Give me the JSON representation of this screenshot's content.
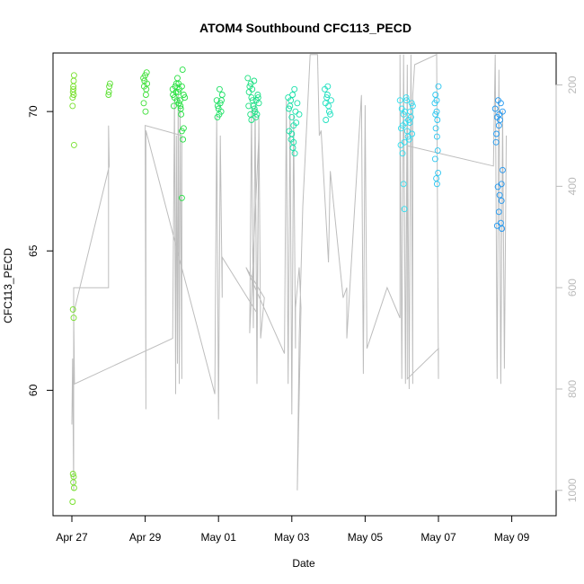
{
  "chart_data": {
    "type": "scatter",
    "title": "ATOM4 Southbound CFC113_PECD",
    "xlabel": "Date",
    "ylabel": "CFC113_PECD",
    "x_ticks": [
      "Apr 27",
      "Apr 29",
      "May 01",
      "May 03",
      "May 05",
      "May 07",
      "May 09"
    ],
    "x_tick_days": [
      0,
      2,
      4,
      6,
      8,
      10,
      12
    ],
    "y_ticks": [
      60,
      65,
      70
    ],
    "y2_ticks": [
      200,
      400,
      600,
      800,
      1000
    ],
    "xlim_days": [
      -0.5,
      13.0
    ],
    "ylim": [
      55.5,
      72.1
    ],
    "y2lim": [
      1050,
      137
    ],
    "grid": false,
    "legend": "none",
    "color_scale": [
      "#77e02a",
      "#22e040",
      "#16e0a8",
      "#30e0f0",
      "#1e8ef0"
    ],
    "series": [
      {
        "values": [
          [
            0.02,
            70.5
          ],
          [
            0.03,
            70.7
          ],
          [
            0.04,
            70.9
          ],
          [
            0.05,
            71.1
          ],
          [
            0.06,
            71.3
          ],
          [
            0.02,
            70.2
          ],
          [
            0.05,
            70.6
          ],
          [
            0.04,
            70.8
          ],
          [
            0.06,
            68.8
          ],
          [
            0.03,
            62.9
          ],
          [
            0.05,
            62.6
          ],
          [
            0.03,
            57.0
          ],
          [
            0.05,
            56.9
          ],
          [
            0.04,
            56.7
          ],
          [
            0.06,
            56.5
          ],
          [
            0.02,
            56.0
          ],
          [
            1.0,
            70.6
          ],
          [
            1.02,
            70.9
          ],
          [
            1.04,
            71.0
          ],
          [
            1.01,
            70.7
          ],
          [
            1.95,
            71.2
          ],
          [
            1.97,
            70.9
          ],
          [
            2.0,
            71.3
          ],
          [
            2.02,
            70.6
          ],
          [
            1.98,
            71.1
          ],
          [
            2.03,
            70.8
          ],
          [
            1.96,
            70.3
          ],
          [
            2.01,
            70.0
          ],
          [
            2.05,
            71.0
          ],
          [
            2.04,
            71.4
          ],
          [
            2.75,
            70.8
          ],
          [
            2.8,
            70.5
          ],
          [
            2.85,
            71.0
          ],
          [
            2.9,
            70.7
          ],
          [
            2.95,
            70.4
          ],
          [
            3.0,
            70.9
          ],
          [
            3.05,
            70.6
          ],
          [
            2.78,
            70.2
          ],
          [
            2.88,
            71.2
          ],
          [
            2.92,
            70.3
          ],
          [
            2.98,
            69.9
          ],
          [
            3.02,
            71.5
          ],
          [
            3.0,
            69.3
          ],
          [
            3.03,
            69.0
          ],
          [
            3.05,
            69.4
          ],
          [
            3.0,
            66.9
          ],
          [
            2.82,
            70.9
          ],
          [
            2.87,
            70.4
          ],
          [
            2.93,
            70.8
          ],
          [
            2.97,
            70.1
          ],
          [
            3.08,
            70.5
          ],
          [
            2.76,
            70.6
          ],
          [
            2.84,
            70.7
          ],
          [
            2.91,
            71.0
          ],
          [
            2.96,
            70.2
          ],
          [
            3.95,
            70.4
          ],
          [
            4.0,
            70.1
          ],
          [
            4.05,
            70.3
          ],
          [
            4.1,
            70.6
          ],
          [
            4.02,
            69.9
          ],
          [
            3.98,
            70.2
          ],
          [
            4.07,
            70.0
          ],
          [
            4.03,
            70.8
          ],
          [
            3.97,
            69.8
          ],
          [
            4.08,
            70.4
          ],
          [
            4.8,
            71.2
          ],
          [
            4.85,
            70.9
          ],
          [
            4.9,
            70.5
          ],
          [
            4.95,
            70.2
          ],
          [
            5.0,
            70.0
          ],
          [
            5.05,
            69.9
          ],
          [
            5.1,
            70.3
          ],
          [
            4.83,
            70.7
          ],
          [
            4.88,
            71.0
          ],
          [
            4.93,
            70.4
          ],
          [
            4.98,
            70.1
          ],
          [
            5.02,
            69.8
          ],
          [
            5.07,
            70.6
          ],
          [
            4.82,
            70.2
          ],
          [
            4.87,
            69.9
          ],
          [
            4.92,
            70.8
          ],
          [
            4.97,
            71.1
          ],
          [
            5.03,
            70.4
          ],
          [
            5.08,
            70.5
          ],
          [
            4.9,
            69.7
          ],
          [
            5.9,
            70.5
          ],
          [
            5.95,
            70.2
          ],
          [
            6.0,
            69.8
          ],
          [
            6.05,
            69.5
          ],
          [
            6.1,
            70.0
          ],
          [
            6.15,
            70.3
          ],
          [
            6.2,
            69.9
          ],
          [
            5.93,
            69.3
          ],
          [
            5.98,
            69.0
          ],
          [
            6.03,
            68.7
          ],
          [
            6.08,
            68.5
          ],
          [
            6.02,
            70.6
          ],
          [
            6.07,
            70.8
          ],
          [
            5.97,
            70.4
          ],
          [
            6.12,
            69.6
          ],
          [
            5.92,
            70.1
          ],
          [
            6.0,
            69.2
          ],
          [
            6.05,
            68.9
          ],
          [
            6.9,
            70.8
          ],
          [
            6.95,
            70.5
          ],
          [
            7.0,
            70.2
          ],
          [
            7.05,
            69.9
          ],
          [
            6.92,
            70.3
          ],
          [
            6.97,
            70.6
          ],
          [
            7.02,
            70.0
          ],
          [
            7.07,
            70.4
          ],
          [
            6.93,
            69.7
          ],
          [
            6.98,
            70.9
          ],
          [
            8.95,
            70.4
          ],
          [
            9.0,
            70.1
          ],
          [
            9.05,
            69.9
          ],
          [
            9.1,
            69.6
          ],
          [
            9.15,
            69.3
          ],
          [
            9.2,
            69.0
          ],
          [
            9.25,
            69.8
          ],
          [
            9.3,
            70.2
          ],
          [
            8.97,
            68.8
          ],
          [
            9.02,
            68.5
          ],
          [
            9.07,
            68.9
          ],
          [
            9.12,
            70.5
          ],
          [
            9.17,
            69.1
          ],
          [
            9.22,
            69.6
          ],
          [
            9.27,
            70.3
          ],
          [
            9.05,
            67.4
          ],
          [
            9.07,
            66.5
          ],
          [
            8.98,
            69.4
          ],
          [
            9.08,
            70.0
          ],
          [
            9.18,
            69.7
          ],
          [
            9.28,
            69.2
          ],
          [
            9.13,
            70.4
          ],
          [
            9.23,
            70.0
          ],
          [
            9.03,
            69.5
          ],
          [
            9.9,
            70.3
          ],
          [
            9.92,
            70.6
          ],
          [
            9.95,
            70.0
          ],
          [
            9.97,
            69.7
          ],
          [
            10.0,
            70.9
          ],
          [
            9.93,
            69.4
          ],
          [
            9.96,
            69.1
          ],
          [
            9.98,
            68.6
          ],
          [
            9.91,
            68.3
          ],
          [
            9.94,
            67.6
          ],
          [
            9.96,
            67.4
          ],
          [
            9.99,
            67.8
          ],
          [
            9.95,
            70.4
          ],
          [
            9.92,
            69.9
          ],
          [
            11.55,
            70.1
          ],
          [
            11.6,
            69.8
          ],
          [
            11.65,
            69.5
          ],
          [
            11.7,
            70.3
          ],
          [
            11.75,
            70.0
          ],
          [
            11.58,
            69.2
          ],
          [
            11.63,
            70.4
          ],
          [
            11.68,
            69.7
          ],
          [
            11.57,
            68.9
          ],
          [
            11.62,
            67.3
          ],
          [
            11.67,
            67.0
          ],
          [
            11.72,
            66.8
          ],
          [
            11.65,
            66.4
          ],
          [
            11.7,
            66.0
          ],
          [
            11.73,
            65.8
          ],
          [
            11.6,
            65.9
          ],
          [
            11.75,
            67.9
          ],
          [
            11.72,
            67.4
          ],
          [
            11.66,
            69.9
          ]
        ]
      }
    ]
  }
}
